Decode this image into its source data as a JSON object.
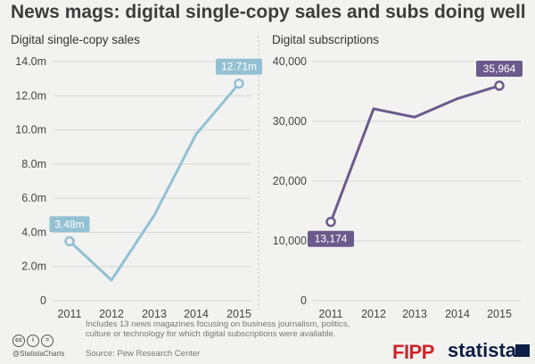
{
  "title": "News mags: digital single-copy sales and subs doing well",
  "footer": {
    "note": "Includes 13 news magazines focusing on business journalism, politics, culture or technology for which digital subscriptions were available.",
    "source": "Source: Pew Research Center",
    "credit": "@StatistaCharts",
    "cc_icons": [
      "cc",
      "i",
      "="
    ],
    "logos": [
      "FIPP",
      "statista"
    ]
  },
  "colors": {
    "left_line": "#93c1d3",
    "left_label_bg": "#93c1d3",
    "right_line": "#6b5a8c",
    "right_label_bg": "#6b5a8c",
    "grid": "#d6d6d6",
    "divider": "#bdbdbd"
  },
  "chart_data": [
    {
      "type": "line",
      "title": "Digital single-copy sales",
      "categories": [
        "2011",
        "2012",
        "2013",
        "2014",
        "2015"
      ],
      "values": [
        3.48,
        1.2,
        5.0,
        9.75,
        12.71
      ],
      "ylim": [
        0,
        14
      ],
      "yticks": [
        0,
        2,
        4,
        6,
        8,
        10,
        12,
        14
      ],
      "ytick_labels": [
        "0",
        "2.0m",
        "4.0m",
        "6.0m",
        "8.0m",
        "10.0m",
        "12.0m",
        "14.0m"
      ],
      "grid": true,
      "callouts": [
        {
          "index": 0,
          "label": "3.48m"
        },
        {
          "index": 4,
          "label": "12.71m"
        }
      ]
    },
    {
      "type": "line",
      "title": "Digital subscriptions",
      "categories": [
        "2011",
        "2012",
        "2013",
        "2014",
        "2015"
      ],
      "values": [
        13174,
        32100,
        30700,
        33800,
        35964
      ],
      "ylim": [
        0,
        40000
      ],
      "yticks": [
        0,
        10000,
        20000,
        30000,
        40000
      ],
      "ytick_labels": [
        "0",
        "10,000",
        "20,000",
        "30,000",
        "40,000"
      ],
      "grid": true,
      "callouts": [
        {
          "index": 0,
          "label": "13,174"
        },
        {
          "index": 4,
          "label": "35,964"
        }
      ]
    }
  ]
}
